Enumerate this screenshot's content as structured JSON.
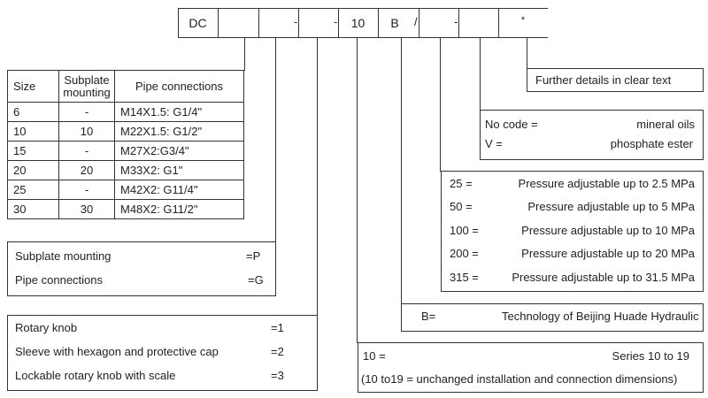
{
  "code_row": {
    "cells": [
      "DC",
      "",
      "",
      "-",
      "-",
      "10",
      "B",
      "/",
      "-",
      "",
      "*"
    ]
  },
  "size_table": {
    "headers": [
      "Size",
      "Subplate mounting",
      "Pipe connections"
    ],
    "rows": [
      [
        "6",
        "-",
        "M14X1.5: G1/4\""
      ],
      [
        "10",
        "10",
        "M22X1.5: G1/2\""
      ],
      [
        "15",
        "-",
        "M27X2:G3/4\""
      ],
      [
        "20",
        "20",
        "M33X2: G1\""
      ],
      [
        "25",
        "-",
        "M42X2: G11/4\""
      ],
      [
        "30",
        "30",
        "M48X2: G11/2\""
      ]
    ]
  },
  "mounting": [
    {
      "label": "Subplate mounting",
      "code": "=P"
    },
    {
      "label": "Pipe connections",
      "code": "=G"
    }
  ],
  "adjustment": [
    {
      "label": "Rotary knob",
      "code": "=1"
    },
    {
      "label": "Sleeve with hexagon and protective cap",
      "code": "=2"
    },
    {
      "label": "Lockable rotary knob with scale",
      "code": "=3"
    }
  ],
  "further": "Further details in  clear text",
  "fluid": [
    {
      "code": "No code =",
      "label": "mineral oils"
    },
    {
      "code": "V =",
      "label": "phosphate ester"
    }
  ],
  "pressure": [
    {
      "code": "25 =",
      "label": "Pressure adjustable up to 2.5 MPa"
    },
    {
      "code": "50 =",
      "label": "Pressure adjustable up to 5 MPa"
    },
    {
      "code": "100 =",
      "label": "Pressure adjustable up to 10 MPa"
    },
    {
      "code": "200 =",
      "label": "Pressure adjustable up to 20 MPa"
    },
    {
      "code": "315 =",
      "label": "Pressure adjustable up to 31.5 MPa"
    }
  ],
  "technology": {
    "code": "B=",
    "label": "Technology of Beijing Huade Hydraulic"
  },
  "series": {
    "code": "10 =",
    "label": "Series 10 to 19",
    "note": "(10 to19 = unchanged installation and connection dimensions)"
  }
}
